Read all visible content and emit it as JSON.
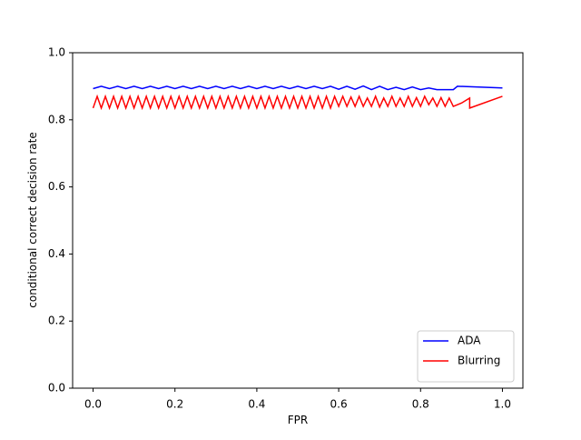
{
  "chart_data": {
    "type": "line",
    "xlabel": "FPR",
    "ylabel": "conditional correct decision rate",
    "xlim": [
      -0.05,
      1.05
    ],
    "ylim": [
      0,
      1
    ],
    "xticks": [
      {
        "value": 0,
        "label": "0.0"
      },
      0.2,
      0.4,
      0.6,
      0.8,
      {
        "value": 1,
        "label": "1.0"
      }
    ],
    "yticks": [
      {
        "value": 0,
        "label": "0.0"
      },
      0.2,
      0.4,
      0.6,
      0.8,
      {
        "value": 1,
        "label": "1.0"
      }
    ],
    "legend": "lower right",
    "grid": false,
    "series": [
      {
        "name": "ADA",
        "color": "#0000ff",
        "x": [
          0,
          0.02,
          0.04,
          0.06,
          0.08,
          0.1,
          0.12,
          0.14,
          0.16,
          0.18,
          0.2,
          0.22,
          0.24,
          0.26,
          0.28,
          0.3,
          0.32,
          0.34,
          0.36,
          0.38,
          0.4,
          0.42,
          0.44,
          0.46,
          0.48,
          0.5,
          0.52,
          0.54,
          0.56,
          0.58,
          0.6,
          0.62,
          0.64,
          0.66,
          0.68,
          0.7,
          0.72,
          0.74,
          0.76,
          0.78,
          0.8,
          0.82,
          0.84,
          0.88,
          0.89,
          1.0
        ],
        "values": [
          0.893,
          0.9,
          0.893,
          0.9,
          0.893,
          0.9,
          0.893,
          0.9,
          0.893,
          0.9,
          0.893,
          0.9,
          0.893,
          0.9,
          0.893,
          0.9,
          0.893,
          0.9,
          0.893,
          0.9,
          0.893,
          0.9,
          0.893,
          0.9,
          0.893,
          0.9,
          0.893,
          0.9,
          0.893,
          0.9,
          0.891,
          0.9,
          0.891,
          0.901,
          0.89,
          0.9,
          0.89,
          0.897,
          0.89,
          0.898,
          0.89,
          0.895,
          0.89,
          0.89,
          0.9,
          0.895
        ]
      },
      {
        "name": "Blurring",
        "color": "#ff0000",
        "x": [
          0,
          0.01,
          0.02,
          0.03,
          0.04,
          0.05,
          0.06,
          0.07,
          0.08,
          0.09,
          0.1,
          0.11,
          0.12,
          0.13,
          0.14,
          0.15,
          0.16,
          0.17,
          0.18,
          0.19,
          0.2,
          0.21,
          0.22,
          0.23,
          0.24,
          0.25,
          0.26,
          0.27,
          0.28,
          0.29,
          0.3,
          0.31,
          0.32,
          0.33,
          0.34,
          0.35,
          0.36,
          0.37,
          0.38,
          0.39,
          0.4,
          0.41,
          0.42,
          0.43,
          0.44,
          0.45,
          0.46,
          0.47,
          0.48,
          0.49,
          0.5,
          0.51,
          0.52,
          0.53,
          0.54,
          0.55,
          0.56,
          0.57,
          0.58,
          0.59,
          0.6,
          0.61,
          0.62,
          0.63,
          0.64,
          0.65,
          0.66,
          0.67,
          0.68,
          0.69,
          0.7,
          0.71,
          0.72,
          0.73,
          0.74,
          0.75,
          0.76,
          0.77,
          0.78,
          0.79,
          0.8,
          0.81,
          0.82,
          0.83,
          0.84,
          0.85,
          0.86,
          0.87,
          0.88,
          0.9,
          0.92,
          0.92,
          1.0
        ],
        "values": [
          0.835,
          0.87,
          0.835,
          0.87,
          0.835,
          0.87,
          0.835,
          0.87,
          0.835,
          0.87,
          0.835,
          0.87,
          0.835,
          0.87,
          0.835,
          0.87,
          0.835,
          0.87,
          0.835,
          0.87,
          0.835,
          0.87,
          0.835,
          0.87,
          0.835,
          0.87,
          0.835,
          0.87,
          0.835,
          0.87,
          0.835,
          0.87,
          0.835,
          0.87,
          0.835,
          0.87,
          0.835,
          0.87,
          0.835,
          0.87,
          0.835,
          0.87,
          0.835,
          0.87,
          0.835,
          0.87,
          0.835,
          0.87,
          0.835,
          0.87,
          0.835,
          0.87,
          0.835,
          0.87,
          0.835,
          0.87,
          0.835,
          0.87,
          0.835,
          0.87,
          0.84,
          0.87,
          0.84,
          0.868,
          0.84,
          0.87,
          0.84,
          0.865,
          0.84,
          0.87,
          0.838,
          0.865,
          0.84,
          0.87,
          0.84,
          0.865,
          0.84,
          0.87,
          0.84,
          0.866,
          0.84,
          0.87,
          0.845,
          0.865,
          0.84,
          0.866,
          0.84,
          0.865,
          0.84,
          0.85,
          0.865,
          0.835,
          0.87
        ]
      }
    ]
  }
}
